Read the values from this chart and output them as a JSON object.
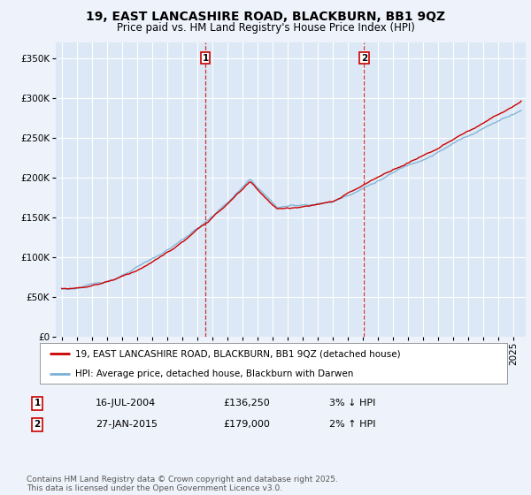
{
  "title": "19, EAST LANCASHIRE ROAD, BLACKBURN, BB1 9QZ",
  "subtitle": "Price paid vs. HM Land Registry's House Price Index (HPI)",
  "ylim": [
    0,
    370000
  ],
  "yticks": [
    0,
    50000,
    100000,
    150000,
    200000,
    250000,
    300000,
    350000
  ],
  "background_color": "#eef2fa",
  "plot_background": "#dce8f5",
  "grid_color": "#ffffff",
  "hpi_color": "#7ab0d4",
  "price_color": "#cc0000",
  "vline_color": "#cc0000",
  "marker1_x": 2004.54,
  "marker2_x": 2015.07,
  "marker1_label": "1",
  "marker2_label": "2",
  "legend_entry1": "19, EAST LANCASHIRE ROAD, BLACKBURN, BB1 9QZ (detached house)",
  "legend_entry2": "HPI: Average price, detached house, Blackburn with Darwen",
  "table_row1": [
    "1",
    "16-JUL-2004",
    "£136,250",
    "3% ↓ HPI"
  ],
  "table_row2": [
    "2",
    "27-JAN-2015",
    "£179,000",
    "2% ↑ HPI"
  ],
  "footer": "Contains HM Land Registry data © Crown copyright and database right 2025.\nThis data is licensed under the Open Government Licence v3.0.",
  "title_fontsize": 10,
  "subtitle_fontsize": 8.5,
  "tick_fontsize": 7.5,
  "legend_fontsize": 7.5,
  "table_fontsize": 8,
  "footer_fontsize": 6.5
}
